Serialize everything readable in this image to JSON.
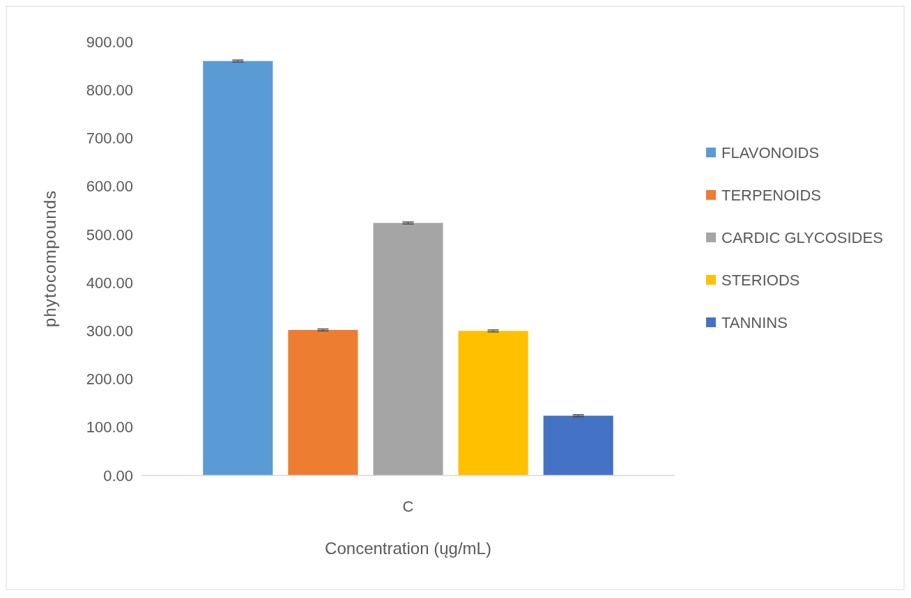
{
  "chart_data": {
    "type": "bar",
    "xlabel": "Concentration (ųg/mL)",
    "ylabel": "phytocompounds",
    "categories": [
      "C"
    ],
    "series": [
      {
        "name": "FLAVONOIDS",
        "color": "#5b9bd5",
        "values": [
          860
        ],
        "errors": [
          2
        ]
      },
      {
        "name": "TERPENOIDS",
        "color": "#ed7d31",
        "values": [
          302
        ],
        "errors": [
          2
        ]
      },
      {
        "name": "CARDIC GLYCOSIDES",
        "color": "#a5a5a5",
        "values": [
          524
        ],
        "errors": [
          2
        ]
      },
      {
        "name": "STERIODS",
        "color": "#ffc000",
        "values": [
          300
        ],
        "errors": [
          2
        ]
      },
      {
        "name": "TANNINS",
        "color": "#4472c4",
        "values": [
          124
        ],
        "errors": [
          2
        ]
      }
    ],
    "ylim": [
      0,
      900
    ],
    "yticks": [
      {
        "value": 0,
        "label": "0.00"
      },
      {
        "value": 100,
        "label": "100.00"
      },
      {
        "value": 200,
        "label": "200.00"
      },
      {
        "value": 300,
        "label": "300.00"
      },
      {
        "value": 400,
        "label": "400.00"
      },
      {
        "value": 500,
        "label": "500.00"
      },
      {
        "value": 600,
        "label": "600.00"
      },
      {
        "value": 700,
        "label": "700.00"
      },
      {
        "value": 800,
        "label": "800.00"
      },
      {
        "value": 900,
        "label": "900.00"
      }
    ],
    "grid": false,
    "legend": "right"
  }
}
